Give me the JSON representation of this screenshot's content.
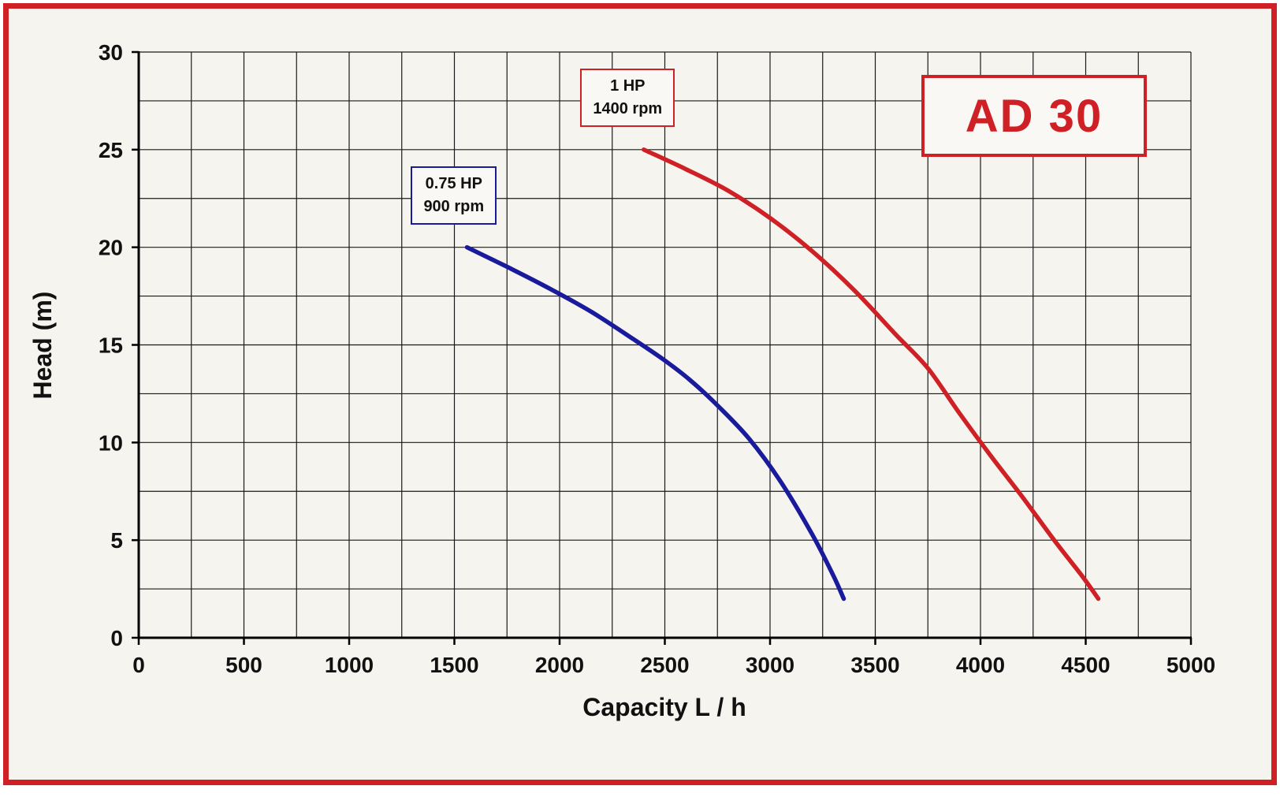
{
  "page": {
    "background": "#f6f4ef",
    "frame_border_color": "#cf2026"
  },
  "title_box": {
    "label": "AD 30",
    "color": "#cf2026"
  },
  "chart_data": {
    "type": "line",
    "title": "AD 30",
    "xlabel": "Capacity  L / h",
    "ylabel": "Head (m)",
    "xlim": [
      0,
      5000
    ],
    "ylim": [
      0,
      30
    ],
    "x_major_ticks": [
      0,
      500,
      1000,
      1500,
      2000,
      2500,
      3000,
      3500,
      4000,
      4500,
      5000
    ],
    "y_major_ticks": [
      0,
      5,
      10,
      15,
      20,
      25,
      30
    ],
    "x_minor_step": 250,
    "y_minor_step": 2.5,
    "grid": true,
    "grid_color": "#1a1a1a",
    "legend_position": "annotated-boxes",
    "series": [
      {
        "name": "0.75 HP 900 rpm",
        "color": "#1a1a9c",
        "points": [
          [
            1560,
            20
          ],
          [
            1750,
            19
          ],
          [
            1950,
            17.9
          ],
          [
            2150,
            16.7
          ],
          [
            2350,
            15.3
          ],
          [
            2500,
            14.2
          ],
          [
            2620,
            13.2
          ],
          [
            2750,
            11.9
          ],
          [
            2900,
            10.2
          ],
          [
            3050,
            8.0
          ],
          [
            3200,
            5.3
          ],
          [
            3300,
            3.2
          ],
          [
            3350,
            2
          ]
        ]
      },
      {
        "name": "1 HP 1400 rpm",
        "color": "#cf2026",
        "points": [
          [
            2400,
            25
          ],
          [
            2600,
            24
          ],
          [
            2800,
            22.9
          ],
          [
            3000,
            21.5
          ],
          [
            3200,
            19.8
          ],
          [
            3400,
            17.8
          ],
          [
            3600,
            15.5
          ],
          [
            3750,
            13.8
          ],
          [
            3900,
            11.5
          ],
          [
            4050,
            9.3
          ],
          [
            4200,
            7.2
          ],
          [
            4350,
            5.0
          ],
          [
            4480,
            3.2
          ],
          [
            4560,
            2
          ]
        ]
      }
    ],
    "annotations": [
      {
        "lines": [
          "0.75 HP",
          "900 rpm"
        ],
        "color": "#1a1a9c",
        "x": 1335,
        "y": 23.7
      },
      {
        "lines": [
          "1 HP",
          "1400 rpm"
        ],
        "color": "#cf2026",
        "x": 2140,
        "y": 28.7
      }
    ]
  }
}
